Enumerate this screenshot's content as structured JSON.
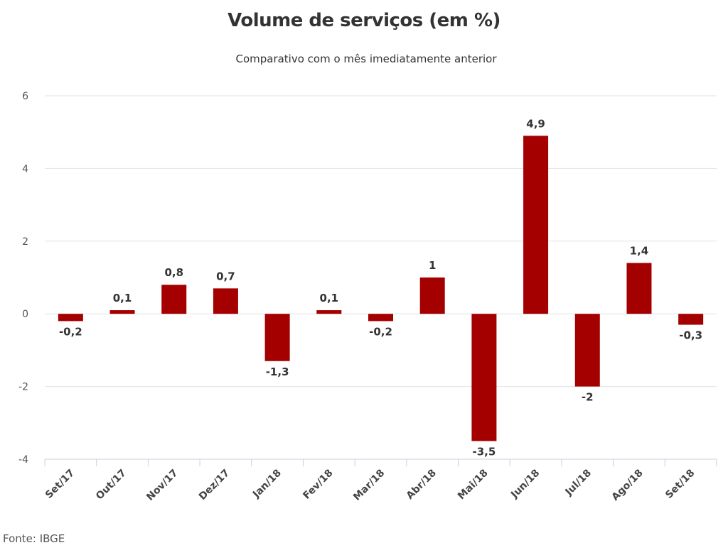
{
  "chart_data": {
    "type": "bar",
    "title": "Volume de serviços (em %)",
    "subtitle": "Comparativo com o mês imediatamente anterior",
    "xlabel": "",
    "ylabel": "",
    "categories": [
      "Set/17",
      "Out/17",
      "Nov/17",
      "Dez/17",
      "Jan/18",
      "Fev/18",
      "Mar/18",
      "Abr/18",
      "Mai/18",
      "Jun/18",
      "Jul/18",
      "Ago/18",
      "Set/18"
    ],
    "values": [
      -0.2,
      0.1,
      0.8,
      0.7,
      -1.3,
      0.1,
      -0.2,
      1,
      -3.5,
      4.9,
      -2,
      1.4,
      -0.3
    ],
    "value_labels": [
      "-0,2",
      "0,1",
      "0,8",
      "0,7",
      "-1,3",
      "0,1",
      "-0,2",
      "1",
      "-3,5",
      "4,9",
      "-2",
      "1,4",
      "-0,3"
    ],
    "ylim": [
      -4,
      6
    ],
    "yticks": [
      -4,
      -2,
      0,
      2,
      4,
      6
    ],
    "grid": true,
    "legend": "none",
    "bar_color": "#a50000",
    "source": "Fonte: IBGE"
  }
}
